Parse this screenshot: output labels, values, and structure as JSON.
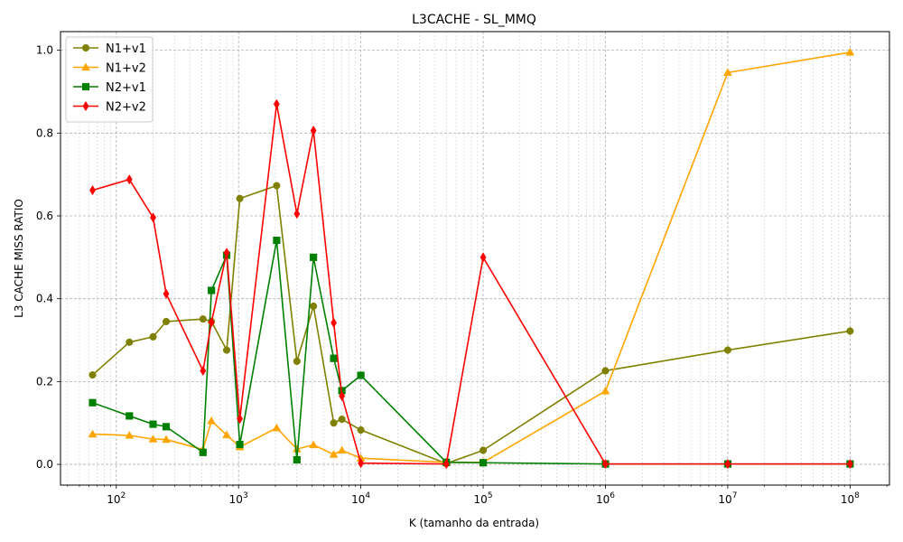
{
  "chart_data": {
    "type": "line",
    "title": "L3CACHE - SL_MMQ",
    "xlabel": "K (tamanho da entrada)",
    "ylabel": "L3 CACHE MISS RATIO",
    "xscale": "log",
    "xlim": [
      35,
      210000000
    ],
    "ylim": [
      -0.05,
      1.045
    ],
    "grid": "on (major and minor, dashed)",
    "legend_position": "top-left",
    "x_ticks": [
      {
        "value": 100,
        "base": "10",
        "exp": "2"
      },
      {
        "value": 1000,
        "base": "10",
        "exp": "3"
      },
      {
        "value": 10000,
        "base": "10",
        "exp": "4"
      },
      {
        "value": 100000,
        "base": "10",
        "exp": "5"
      },
      {
        "value": 1000000,
        "base": "10",
        "exp": "6"
      },
      {
        "value": 10000000,
        "base": "10",
        "exp": "7"
      },
      {
        "value": 100000000,
        "base": "10",
        "exp": "8"
      }
    ],
    "y_ticks": [
      "0.0",
      "0.2",
      "0.4",
      "0.6",
      "0.8",
      "1.0"
    ],
    "series": [
      {
        "name": "N1+v1",
        "color": "#808000",
        "marker": "circle",
        "x": [
          64,
          128,
          200,
          256,
          512,
          600,
          800,
          1024,
          2048,
          3000,
          4096,
          6000,
          7000,
          10000,
          50000,
          100000,
          1000000,
          10000000,
          100000000
        ],
        "y": [
          0.216,
          0.295,
          0.308,
          0.345,
          0.351,
          0.345,
          0.276,
          0.642,
          0.673,
          0.249,
          0.382,
          0.1,
          0.109,
          0.083,
          0.002,
          0.034,
          0.226,
          0.276,
          0.322
        ]
      },
      {
        "name": "N1+v2",
        "color": "#FFA500",
        "marker": "triangle",
        "x": [
          64,
          128,
          200,
          256,
          512,
          600,
          800,
          1024,
          2048,
          3000,
          4096,
          6000,
          7000,
          10000,
          50000,
          100000,
          1000000,
          10000000,
          100000000
        ],
        "y": [
          0.073,
          0.07,
          0.061,
          0.06,
          0.036,
          0.105,
          0.071,
          0.042,
          0.088,
          0.037,
          0.047,
          0.024,
          0.034,
          0.015,
          0.005,
          0.005,
          0.177,
          0.946,
          0.995
        ]
      },
      {
        "name": "N2+v1",
        "color": "#008000",
        "marker": "square",
        "x": [
          64,
          128,
          200,
          256,
          512,
          600,
          800,
          1024,
          2048,
          3000,
          4096,
          6000,
          7000,
          10000,
          50000,
          100000,
          1000000,
          10000000,
          100000000
        ],
        "y": [
          0.149,
          0.117,
          0.097,
          0.091,
          0.029,
          0.42,
          0.505,
          0.048,
          0.541,
          0.011,
          0.5,
          0.256,
          0.178,
          0.215,
          0.005,
          0.004,
          0.001,
          0.001,
          0.001
        ]
      },
      {
        "name": "N2+v2",
        "color": "#FF0000",
        "marker": "diamond",
        "x": [
          64,
          128,
          200,
          256,
          512,
          600,
          800,
          1024,
          2048,
          3000,
          4096,
          6000,
          7000,
          10000,
          50000,
          100000,
          1000000,
          10000000,
          100000000
        ],
        "y": [
          0.662,
          0.688,
          0.596,
          0.412,
          0.226,
          0.343,
          0.511,
          0.11,
          0.87,
          0.605,
          0.806,
          0.342,
          0.165,
          0.003,
          0.001,
          0.5,
          0.001,
          0.001,
          0.001
        ]
      }
    ]
  }
}
